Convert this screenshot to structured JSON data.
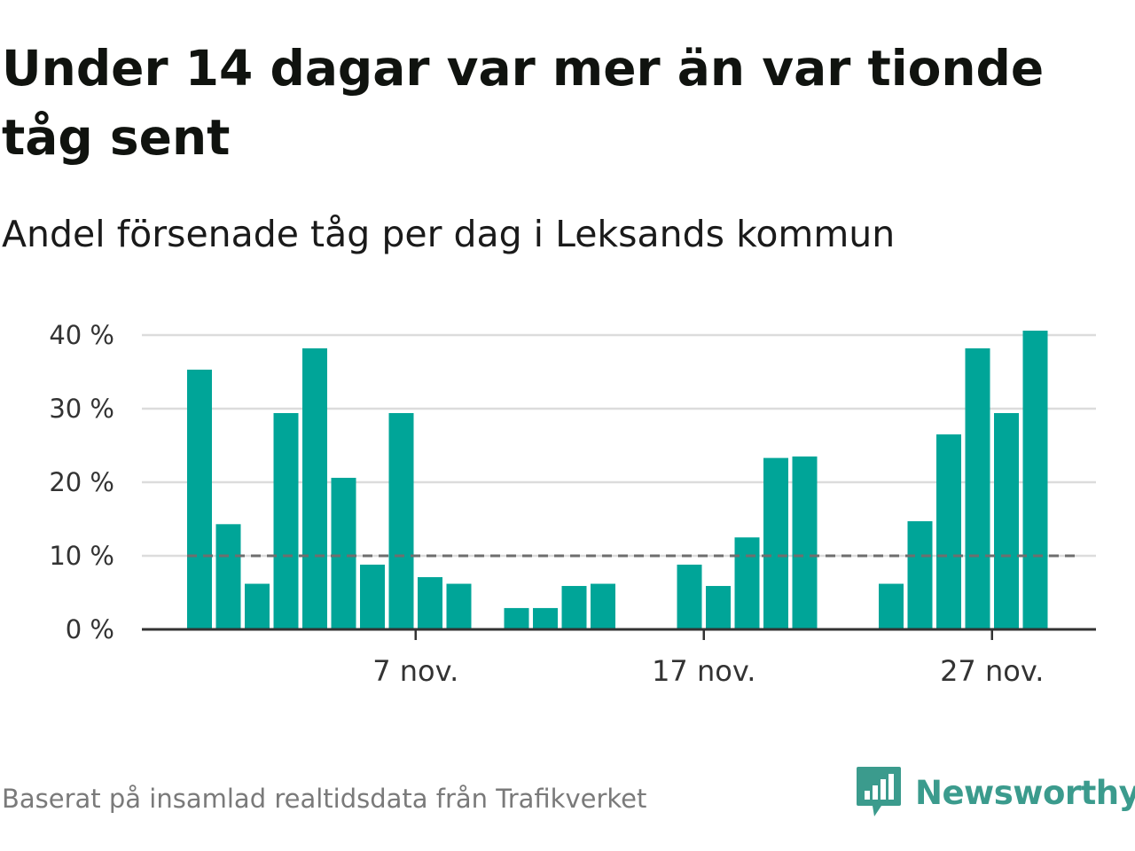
{
  "title": "Under 14 dagar var mer än var tionde tåg sent",
  "subtitle": "Andel försenade tåg per dag i Leksands kommun",
  "footnote": "Baserat på insamlad realtidsdata från Trafikverket",
  "brand": {
    "name": "Newsworthy",
    "icon": "newsworthy-logo-icon"
  },
  "colors": {
    "bar": "#00a598",
    "grid": "#dcdcdc",
    "axis": "#333333",
    "reference": "#6e6e6e",
    "brand": "#3b9b8d"
  },
  "chart_data": {
    "type": "bar",
    "x": [
      "2023-10-30",
      "2023-10-31",
      "2023-11-01",
      "2023-11-02",
      "2023-11-03",
      "2023-11-04",
      "2023-11-05",
      "2023-11-06",
      "2023-11-07",
      "2023-11-08",
      "2023-11-09",
      "2023-11-10",
      "2023-11-11",
      "2023-11-12",
      "2023-11-13",
      "2023-11-14",
      "2023-11-15",
      "2023-11-16",
      "2023-11-17",
      "2023-11-18",
      "2023-11-19",
      "2023-11-20",
      "2023-11-21",
      "2023-11-22",
      "2023-11-23",
      "2023-11-24",
      "2023-11-25",
      "2023-11-26",
      "2023-11-27",
      "2023-11-28",
      "2023-11-29"
    ],
    "values": [
      35.3,
      14.3,
      6.2,
      29.4,
      38.2,
      20.6,
      8.8,
      29.4,
      7.1,
      6.2,
      null,
      2.9,
      2.9,
      5.9,
      6.2,
      null,
      null,
      8.8,
      5.9,
      12.5,
      23.3,
      23.5,
      null,
      null,
      6.2,
      14.7,
      26.5,
      38.2,
      29.4,
      40.6,
      null
    ],
    "ylim": [
      0,
      40
    ],
    "yticks": [
      0,
      10,
      20,
      30,
      40
    ],
    "ytick_labels": [
      "0 %",
      "10 %",
      "20 %",
      "30 %",
      "40 %"
    ],
    "xtick_dates": [
      "2023-11-07",
      "2023-11-17",
      "2023-11-27"
    ],
    "xtick_labels": [
      "7 nov.",
      "17 nov.",
      "27 nov."
    ],
    "reference_line": 10,
    "grid": true,
    "xlabel": "",
    "ylabel": ""
  }
}
